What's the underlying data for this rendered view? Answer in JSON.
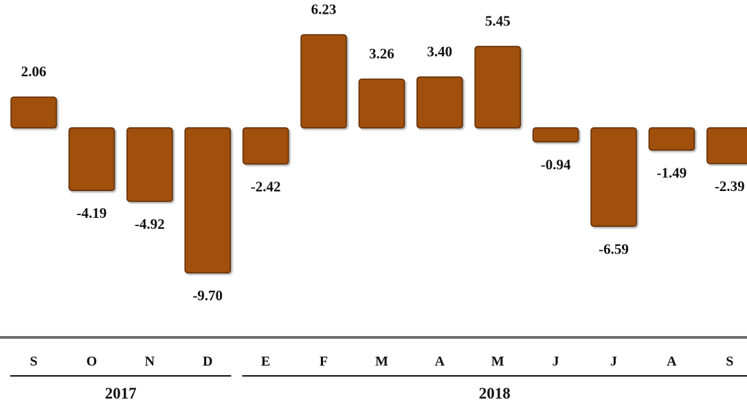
{
  "chart_data": {
    "type": "bar",
    "categories": [
      "S",
      "O",
      "N",
      "D",
      "E",
      "F",
      "M",
      "A",
      "M",
      "J",
      "J",
      "A",
      "S"
    ],
    "values": [
      2.06,
      -4.19,
      -4.92,
      -9.7,
      -2.42,
      6.23,
      3.26,
      3.4,
      5.45,
      -0.94,
      -6.59,
      -1.49,
      -2.39
    ],
    "value_labels": [
      "2.06",
      "-4.19",
      "-4.92",
      "-9.70",
      "-2.42",
      "6.23",
      "3.26",
      "3.40",
      "5.45",
      "-0.94",
      "-6.59",
      "-1.49",
      "-2.39"
    ],
    "year_groups": [
      {
        "label": "2017",
        "start": 0,
        "end": 3
      },
      {
        "label": "2018",
        "start": 4,
        "end": 12
      }
    ],
    "title": "",
    "xlabel": "",
    "ylabel": "",
    "ylim": [
      -9.7,
      6.23
    ],
    "grid": false,
    "legend": "none",
    "bar_color": "#A0500F",
    "bar_edge_color": "#5E2A05"
  }
}
